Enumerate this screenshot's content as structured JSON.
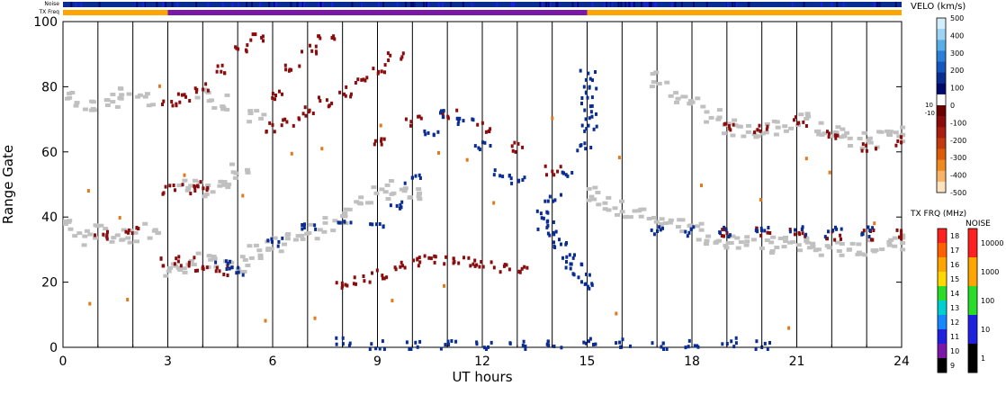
{
  "chart_data": {
    "type": "scatter",
    "xlabel": "UT hours",
    "ylabel": "Range Gate",
    "xlim": [
      0,
      24
    ],
    "ylim": [
      0,
      100
    ],
    "x_ticks": [
      0,
      3,
      6,
      9,
      12,
      15,
      18,
      21,
      24
    ],
    "y_ticks": [
      0,
      20,
      40,
      60,
      80,
      100
    ],
    "grid": "vertical lines every 1 UT hour",
    "strips": {
      "noise_label": "Noise",
      "txfreq_label": "TX Freq",
      "txfreq_segments": [
        {
          "from": 0,
          "to": 3,
          "color": "#ffa500"
        },
        {
          "from": 3,
          "to": 15,
          "color": "#7a18a8"
        },
        {
          "from": 15,
          "to": 24,
          "color": "#ffa500"
        }
      ]
    },
    "velocity_scale": {
      "title": "VELO (km/s)",
      "ticks": [
        "500",
        "400",
        "300",
        "200",
        "100",
        "0",
        "-100",
        "-200",
        "-300",
        "-400",
        "-500"
      ],
      "near_zero_labels": [
        "10",
        "-10"
      ],
      "colors": [
        "#d2eefa",
        "#9ed4f3",
        "#5aaee8",
        "#2a7fd6",
        "#1555be",
        "#0a2d92",
        "#000a6b",
        "#ffffff",
        "#6b0000",
        "#8a0d0d",
        "#a81e10",
        "#c23a0e",
        "#dc5c0a",
        "#ef8a20",
        "#f7b368",
        "#fde2c0"
      ]
    },
    "tx_freq_scale": {
      "title": "TX FRQ (MHz)",
      "ticks": [
        "18",
        "17",
        "16",
        "15",
        "14",
        "13",
        "12",
        "11",
        "10",
        "9"
      ],
      "colors": [
        "#ff2020",
        "#ff6000",
        "#ffa500",
        "#ffd800",
        "#28dc28",
        "#00cfcf",
        "#1888ff",
        "#2020e0",
        "#7a18a8",
        "#000000"
      ]
    },
    "noise_scale": {
      "title": "NOISE",
      "ticks": [
        "10000",
        "1000",
        "100",
        "10",
        "1"
      ],
      "colors": [
        "#ff2020",
        "#ffa500",
        "#28dc28",
        "#2020e0",
        "#000000"
      ]
    },
    "ground_scatter_color": "#c0c0c0",
    "features": [
      {
        "name": "ground-scatter",
        "color": "#c0c0c0",
        "points": [
          [
            0,
            37
          ],
          [
            0.5,
            34
          ],
          [
            1,
            36
          ],
          [
            1.5,
            35
          ],
          [
            2,
            35
          ],
          [
            2.5,
            36
          ],
          [
            3,
            24
          ],
          [
            3.5,
            26
          ],
          [
            4,
            27
          ],
          [
            4.5,
            27
          ],
          [
            5,
            26
          ],
          [
            5.5,
            30
          ],
          [
            6,
            32
          ],
          [
            6.5,
            34
          ],
          [
            7,
            36
          ],
          [
            7.5,
            38
          ],
          [
            8,
            41
          ],
          [
            8.5,
            45
          ],
          [
            9,
            48
          ],
          [
            9.5,
            50
          ],
          [
            10,
            47
          ],
          [
            15,
            48
          ],
          [
            15.5,
            45
          ],
          [
            16,
            43
          ],
          [
            16.5,
            41
          ],
          [
            17,
            40
          ],
          [
            17.5,
            38
          ],
          [
            18,
            36
          ],
          [
            18.5,
            34
          ],
          [
            19,
            33
          ],
          [
            19.5,
            32
          ],
          [
            20,
            32
          ],
          [
            20.5,
            32
          ],
          [
            21,
            32
          ],
          [
            21.5,
            31
          ],
          [
            22,
            31
          ],
          [
            22.5,
            31
          ],
          [
            23,
            31
          ],
          [
            23.5,
            33
          ],
          [
            24,
            33
          ],
          [
            0.3,
            77
          ],
          [
            0.8,
            75
          ],
          [
            1.3,
            76
          ],
          [
            1.8,
            78
          ],
          [
            2.3,
            77
          ],
          [
            4,
            78
          ],
          [
            4.5,
            76
          ],
          [
            5.5,
            72
          ],
          [
            17,
            83
          ],
          [
            17.5,
            78
          ],
          [
            18,
            75
          ],
          [
            18.5,
            72
          ],
          [
            19,
            68
          ],
          [
            19.5,
            67
          ],
          [
            20,
            67
          ],
          [
            20.5,
            68
          ],
          [
            21,
            70
          ],
          [
            21.5,
            68
          ],
          [
            22,
            66
          ],
          [
            22.5,
            64
          ],
          [
            23,
            64
          ],
          [
            23.5,
            66
          ],
          [
            24,
            66
          ],
          [
            3.5,
            50
          ],
          [
            4,
            49
          ],
          [
            4.5,
            50
          ],
          [
            5,
            55
          ]
        ]
      },
      {
        "name": "negative-velocity-band",
        "color": "#8a0d0d",
        "points": [
          [
            3,
            75
          ],
          [
            3.5,
            77
          ],
          [
            4,
            80
          ],
          [
            4.5,
            86
          ],
          [
            5,
            92
          ],
          [
            5.5,
            96
          ],
          [
            6,
            78
          ],
          [
            6.5,
            86
          ],
          [
            7,
            92
          ],
          [
            7.5,
            96
          ],
          [
            6,
            68
          ],
          [
            6.5,
            70
          ],
          [
            7,
            73
          ],
          [
            7.5,
            76
          ],
          [
            8,
            79
          ],
          [
            8.5,
            82
          ],
          [
            9,
            86
          ],
          [
            9.5,
            90
          ],
          [
            3,
            27
          ],
          [
            3.5,
            27
          ],
          [
            4,
            25
          ],
          [
            4.5,
            24
          ],
          [
            3,
            49
          ],
          [
            3.5,
            49
          ],
          [
            4,
            50
          ],
          [
            8,
            20
          ],
          [
            8.5,
            21
          ],
          [
            9,
            23
          ],
          [
            9.5,
            26
          ],
          [
            10,
            27
          ],
          [
            10.5,
            28
          ],
          [
            11,
            27
          ],
          [
            11.5,
            27
          ],
          [
            12,
            26
          ],
          [
            12.5,
            25
          ],
          [
            13,
            24
          ],
          [
            19,
            68
          ],
          [
            20,
            68
          ],
          [
            21,
            70
          ],
          [
            22,
            66
          ],
          [
            23,
            62
          ],
          [
            24,
            64
          ],
          [
            19,
            36
          ],
          [
            20,
            36
          ],
          [
            21,
            36
          ],
          [
            22,
            35
          ],
          [
            23,
            35
          ],
          [
            24,
            35
          ],
          [
            9,
            64
          ],
          [
            10,
            70
          ],
          [
            11,
            72
          ],
          [
            12,
            68
          ],
          [
            13,
            62
          ],
          [
            14,
            55
          ],
          [
            2,
            36
          ],
          [
            1,
            35
          ]
        ]
      },
      {
        "name": "positive-velocity-band",
        "color": "#0a2d92",
        "points": [
          [
            15,
            68
          ],
          [
            15,
            72
          ],
          [
            15,
            76
          ],
          [
            15,
            80
          ],
          [
            15,
            84
          ],
          [
            14.9,
            62
          ],
          [
            14.5,
            54
          ],
          [
            14,
            46
          ],
          [
            13.6,
            41
          ],
          [
            13.8,
            38
          ],
          [
            14,
            35
          ],
          [
            14.2,
            32
          ],
          [
            14.4,
            28
          ],
          [
            14.6,
            25
          ],
          [
            14.8,
            22
          ],
          [
            15,
            20
          ],
          [
            13,
            52
          ],
          [
            12.5,
            54
          ],
          [
            12,
            62
          ],
          [
            11.5,
            70
          ],
          [
            11,
            72
          ],
          [
            10.5,
            66
          ],
          [
            10,
            52
          ],
          [
            9.5,
            44
          ],
          [
            9,
            38
          ],
          [
            8,
            40
          ],
          [
            7,
            38
          ],
          [
            6,
            33
          ],
          [
            5,
            24
          ],
          [
            4.5,
            26
          ],
          [
            17,
            36
          ],
          [
            18,
            36
          ],
          [
            19,
            36
          ],
          [
            20,
            36
          ],
          [
            21,
            36
          ],
          [
            22,
            36
          ],
          [
            23,
            36
          ],
          [
            8,
            2
          ],
          [
            9,
            1
          ],
          [
            10,
            1
          ],
          [
            11,
            1
          ],
          [
            12,
            1
          ],
          [
            13,
            1
          ],
          [
            14,
            1
          ],
          [
            15,
            2
          ],
          [
            16,
            2
          ],
          [
            17,
            1
          ],
          [
            18,
            2
          ],
          [
            19,
            2
          ],
          [
            20,
            1
          ]
        ]
      },
      {
        "name": "scattered-echoes",
        "color": "#e07a1a",
        "points": [
          [
            0.5,
            48
          ],
          [
            1.5,
            40
          ],
          [
            2.5,
            80
          ],
          [
            3.5,
            52
          ],
          [
            5,
            46
          ],
          [
            6.5,
            60
          ],
          [
            7.5,
            62
          ],
          [
            9,
            70
          ],
          [
            10.5,
            60
          ],
          [
            11.5,
            58
          ],
          [
            12.5,
            44
          ],
          [
            14,
            70
          ],
          [
            16,
            60
          ],
          [
            18,
            50
          ],
          [
            20,
            45
          ],
          [
            21,
            60
          ],
          [
            22,
            55
          ],
          [
            23,
            40
          ],
          [
            0.5,
            15
          ],
          [
            2,
            14
          ],
          [
            16,
            12
          ],
          [
            20.5,
            5
          ],
          [
            6,
            8
          ],
          [
            7,
            10
          ],
          [
            9.5,
            14
          ],
          [
            11,
            18
          ]
        ]
      }
    ]
  }
}
